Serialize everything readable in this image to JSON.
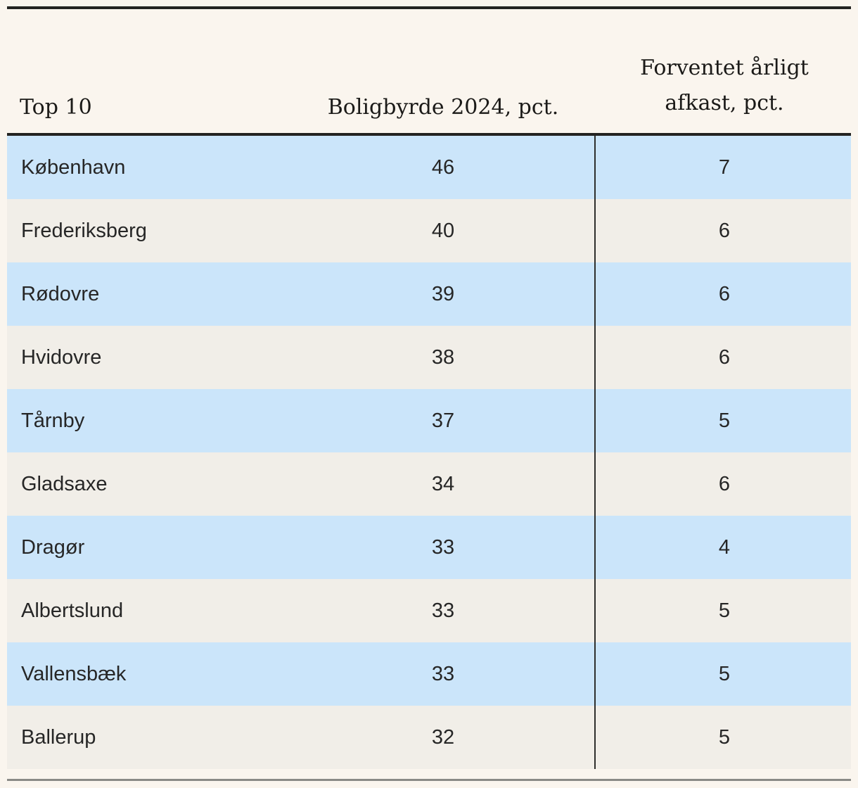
{
  "header": {
    "col1": "Top 10",
    "col2": "Boligbyrde 2024, pct.",
    "col3_line1": "Forventet årligt",
    "col3_line2": "afkast, pct."
  },
  "colors": {
    "background": "#faf5ee",
    "row_blue": "#cbe5fa",
    "row_beige": "#f1eee8",
    "rule_dark": "#232321",
    "rule_gray": "#8a8a86",
    "divider": "#2e2e2c",
    "text": "#262626"
  },
  "chart_data": {
    "type": "table",
    "columns": [
      "Top 10",
      "Boligbyrde 2024, pct.",
      "Forventet årligt afkast, pct."
    ],
    "rows": [
      {
        "kommune": "København",
        "boligbyrde_2024_pct": 46,
        "forventet_aarligt_afkast_pct": 7
      },
      {
        "kommune": "Frederiksberg",
        "boligbyrde_2024_pct": 40,
        "forventet_aarligt_afkast_pct": 6
      },
      {
        "kommune": "Rødovre",
        "boligbyrde_2024_pct": 39,
        "forventet_aarligt_afkast_pct": 6
      },
      {
        "kommune": "Hvidovre",
        "boligbyrde_2024_pct": 38,
        "forventet_aarligt_afkast_pct": 6
      },
      {
        "kommune": "Tårnby",
        "boligbyrde_2024_pct": 37,
        "forventet_aarligt_afkast_pct": 5
      },
      {
        "kommune": "Gladsaxe",
        "boligbyrde_2024_pct": 34,
        "forventet_aarligt_afkast_pct": 6
      },
      {
        "kommune": "Dragør",
        "boligbyrde_2024_pct": 33,
        "forventet_aarligt_afkast_pct": 4
      },
      {
        "kommune": "Albertslund",
        "boligbyrde_2024_pct": 33,
        "forventet_aarligt_afkast_pct": 5
      },
      {
        "kommune": "Vallensbæk",
        "boligbyrde_2024_pct": 33,
        "forventet_aarligt_afkast_pct": 5
      },
      {
        "kommune": "Ballerup",
        "boligbyrde_2024_pct": 32,
        "forventet_aarligt_afkast_pct": 5
      }
    ]
  }
}
